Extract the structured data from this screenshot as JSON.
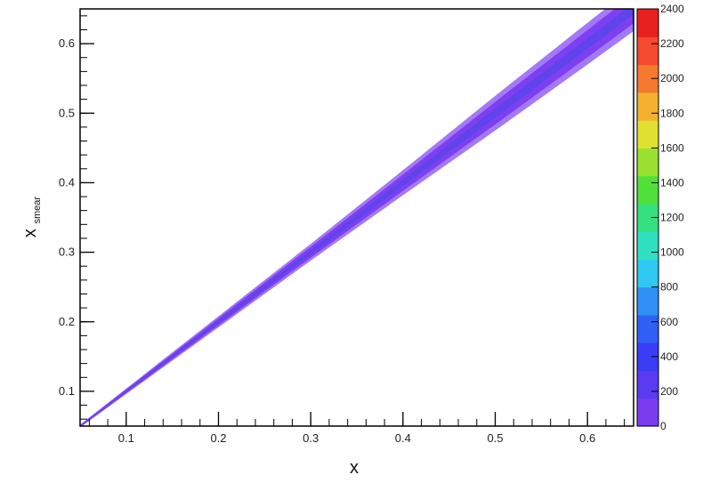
{
  "chart_data": {
    "type": "heatmap",
    "title": "",
    "xlabel": "x",
    "ylabel_main": "x",
    "ylabel_sub": "smear",
    "xlim": [
      0.05,
      0.65
    ],
    "ylim": [
      0.05,
      0.65
    ],
    "x_ticks": [
      0.1,
      0.2,
      0.3,
      0.4,
      0.5,
      0.6
    ],
    "x_tick_labels": [
      "0.1",
      "0.2",
      "0.3",
      "0.4",
      "0.5",
      "0.6"
    ],
    "y_ticks": [
      0.1,
      0.2,
      0.3,
      0.4,
      0.5,
      0.6
    ],
    "y_tick_labels": [
      "0.1",
      "0.2",
      "0.3",
      "0.4",
      "0.5",
      "0.6"
    ],
    "band": {
      "description": "dense diagonal correlation band along x_smear = x",
      "slope": 1.0,
      "half_width_at_x": [
        [
          0.05,
          0.002
        ],
        [
          0.2,
          0.008
        ],
        [
          0.3,
          0.012
        ],
        [
          0.4,
          0.018
        ],
        [
          0.5,
          0.025
        ],
        [
          0.6,
          0.03
        ],
        [
          0.65,
          0.032
        ]
      ]
    },
    "colorbar": {
      "range": [
        0,
        2400
      ],
      "tick_values": [
        0,
        200,
        400,
        600,
        800,
        1000,
        1200,
        1400,
        1600,
        1800,
        2000,
        2200,
        2400
      ],
      "tick_labels": [
        "0",
        "200",
        "400",
        "600",
        "800",
        "1000",
        "1200",
        "1400",
        "1600",
        "1800",
        "2000",
        "2200",
        "2400"
      ],
      "colors": [
        "#7b3cf0",
        "#5a3cf0",
        "#3b3cf5",
        "#2f5ff5",
        "#2f8ff5",
        "#2fc8f0",
        "#2fe0c0",
        "#35e080",
        "#4fe03a",
        "#9ae030",
        "#e0e030",
        "#f5b030",
        "#f57a30",
        "#f54a30",
        "#e82020"
      ]
    },
    "grid": false,
    "legend": "none"
  },
  "colors": {
    "band_outer": "#9a6af5",
    "band_inner": "#7b3cf0",
    "band_core": "#5e44ea",
    "frame": "#000000"
  }
}
